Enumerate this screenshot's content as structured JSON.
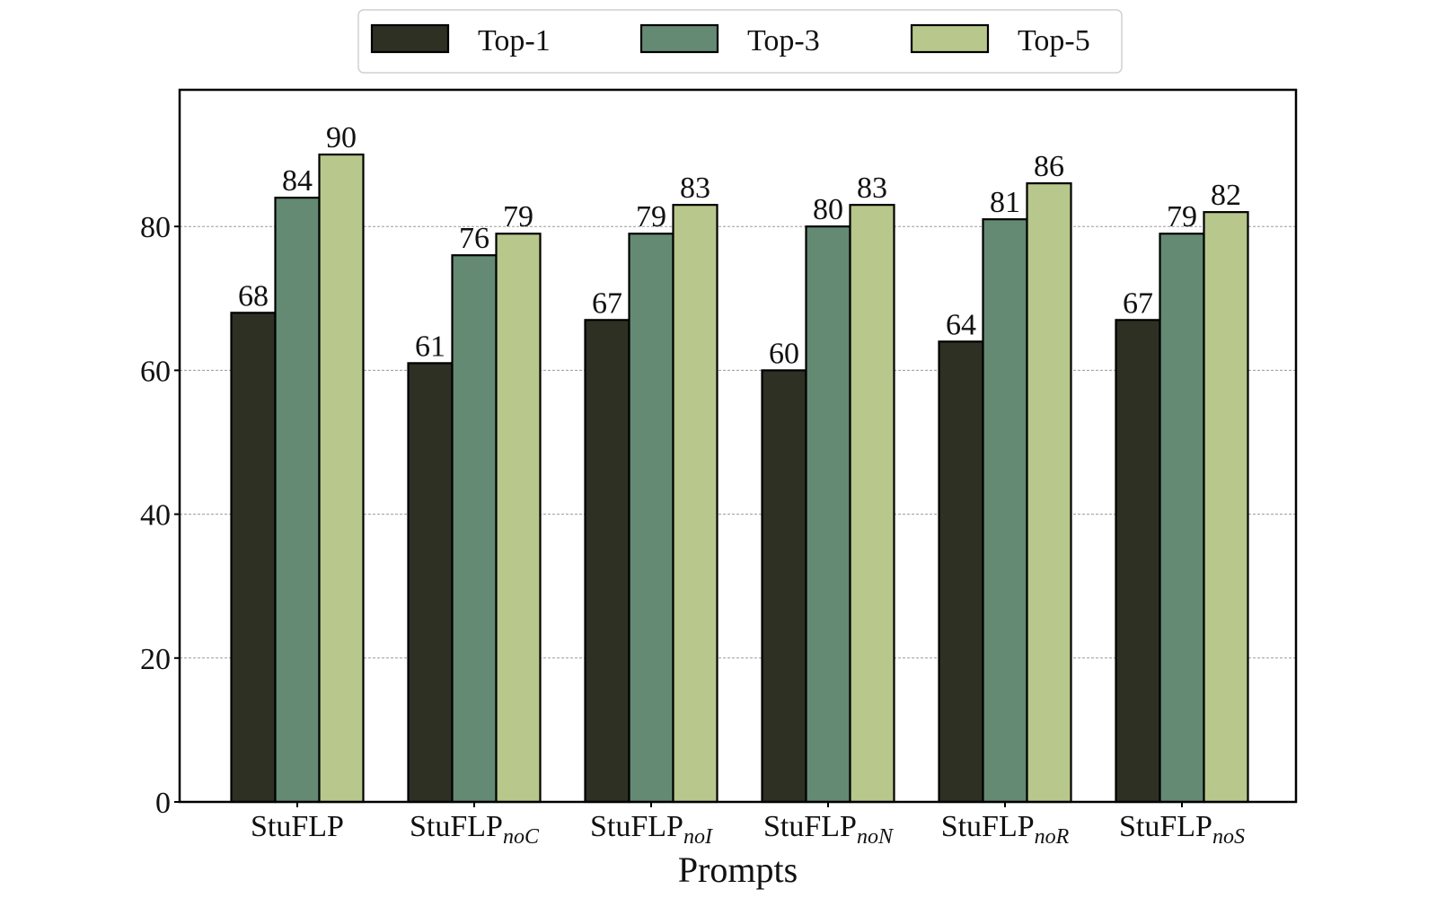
{
  "chart_data": {
    "type": "bar",
    "categories": [
      {
        "base": "StuFLP",
        "sub": ""
      },
      {
        "base": "StuFLP",
        "sub": "noC"
      },
      {
        "base": "StuFLP",
        "sub": "noI"
      },
      {
        "base": "StuFLP",
        "sub": "noN"
      },
      {
        "base": "StuFLP",
        "sub": "noR"
      },
      {
        "base": "StuFLP",
        "sub": "noS"
      }
    ],
    "series": [
      {
        "name": "Top-1",
        "color": "#2d3023",
        "values": [
          68,
          61,
          67,
          60,
          64,
          67
        ]
      },
      {
        "name": "Top-3",
        "color": "#648a73",
        "values": [
          84,
          76,
          79,
          80,
          81,
          79
        ]
      },
      {
        "name": "Top-5",
        "color": "#b8c78b",
        "values": [
          90,
          79,
          83,
          83,
          86,
          82
        ]
      }
    ],
    "xlabel": "Prompts",
    "ylabel": "",
    "ylim": [
      0,
      99
    ],
    "yticks": [
      0,
      20,
      40,
      60,
      80
    ],
    "grid": true,
    "legend": "top-center",
    "data_labels": true
  }
}
